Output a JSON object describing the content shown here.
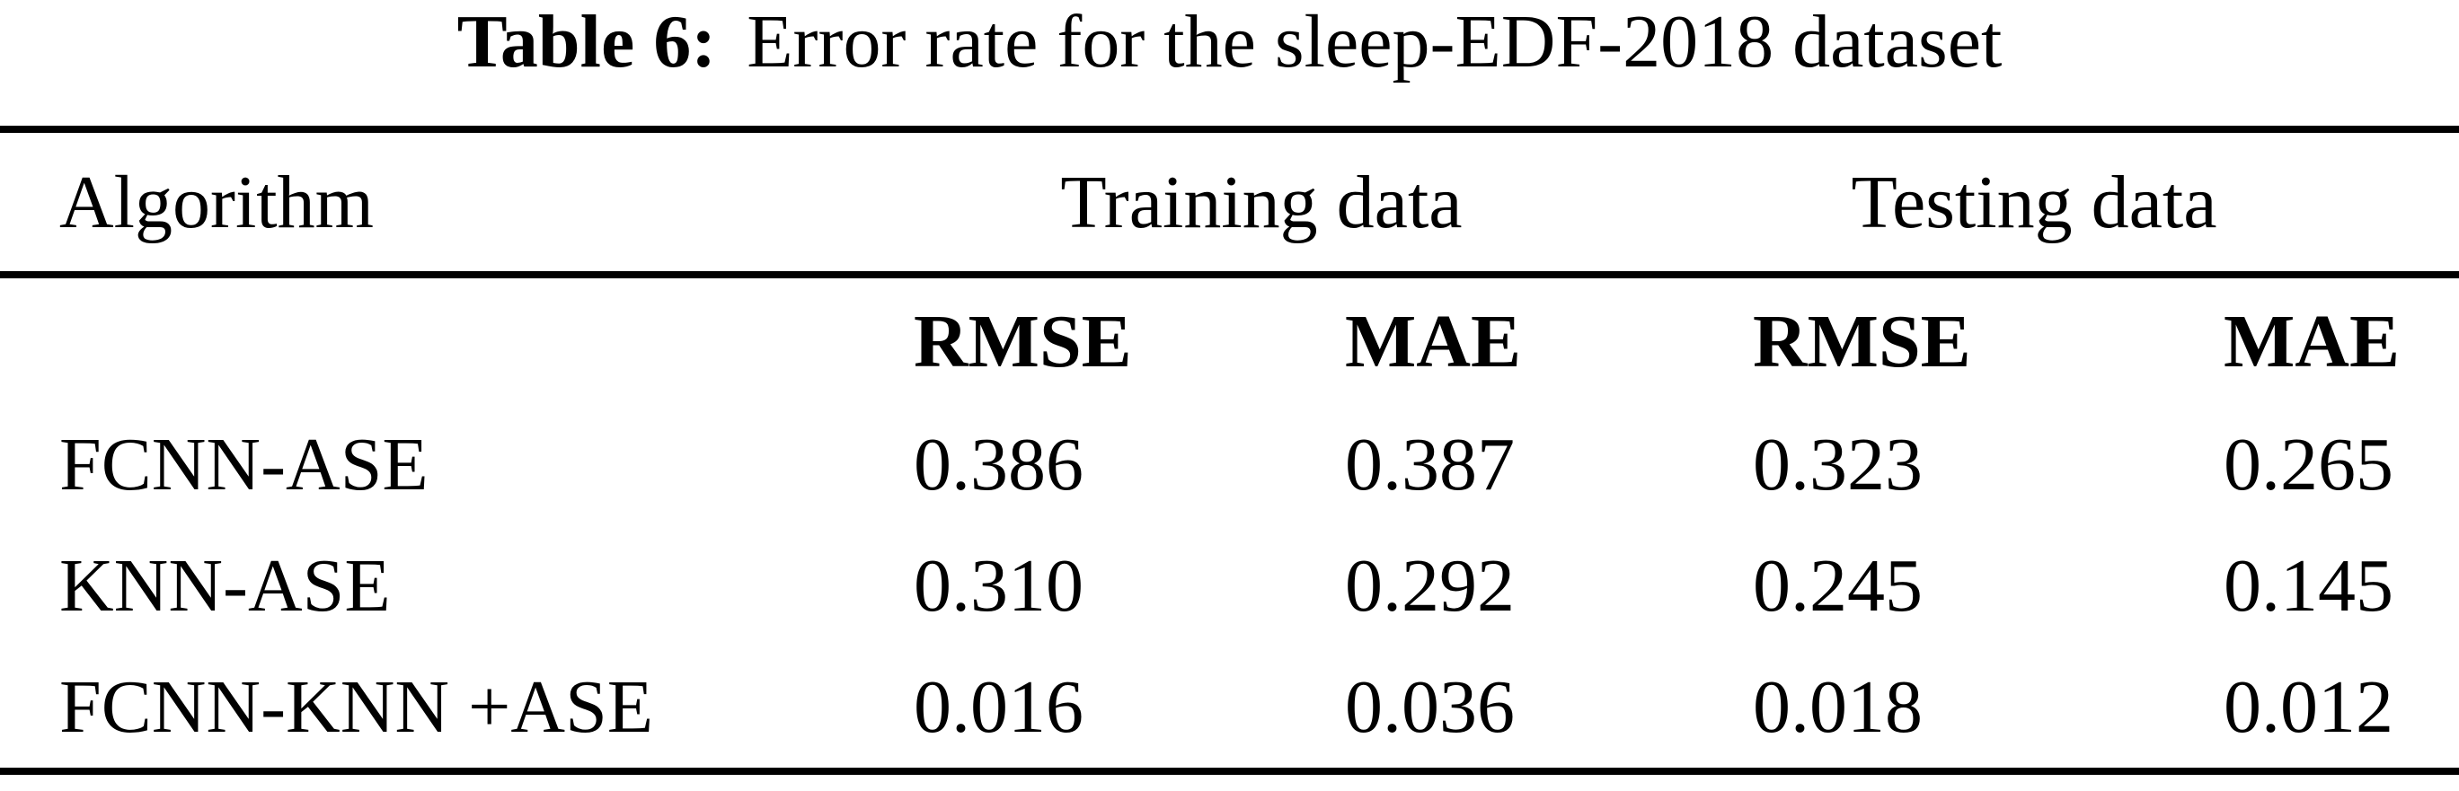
{
  "caption": {
    "label": "Table 6:",
    "text": "Error rate for the sleep-EDF-2018 dataset"
  },
  "table": {
    "algorithm_header": "Algorithm",
    "groups": [
      {
        "label": "Training data"
      },
      {
        "label": "Testing data"
      }
    ],
    "metric_headers": [
      "RMSE",
      "MAE",
      "RMSE",
      "MAE"
    ],
    "rows": [
      {
        "algorithm": "FCNN-ASE",
        "values": [
          "0.386",
          "0.387",
          "0.323",
          "0.265"
        ]
      },
      {
        "algorithm": "KNN-ASE",
        "values": [
          "0.310",
          "0.292",
          "0.245",
          "0.145"
        ]
      },
      {
        "algorithm": "FCNN-KNN +ASE",
        "values": [
          "0.016",
          "0.036",
          "0.018",
          "0.012"
        ]
      }
    ]
  },
  "colors": {
    "text": "#000000",
    "background": "#ffffff",
    "rule": "#000000"
  },
  "chart_data": {
    "type": "table",
    "title": "Table 6: Error rate for the sleep-EDF-2018 dataset",
    "columns": [
      "Algorithm",
      "Training data RMSE",
      "Training data MAE",
      "Testing data RMSE",
      "Testing data MAE"
    ],
    "rows": [
      [
        "FCNN-ASE",
        0.386,
        0.387,
        0.323,
        0.265
      ],
      [
        "KNN-ASE",
        0.31,
        0.292,
        0.245,
        0.145
      ],
      [
        "FCNN-KNN +ASE",
        0.016,
        0.036,
        0.018,
        0.012
      ]
    ]
  }
}
